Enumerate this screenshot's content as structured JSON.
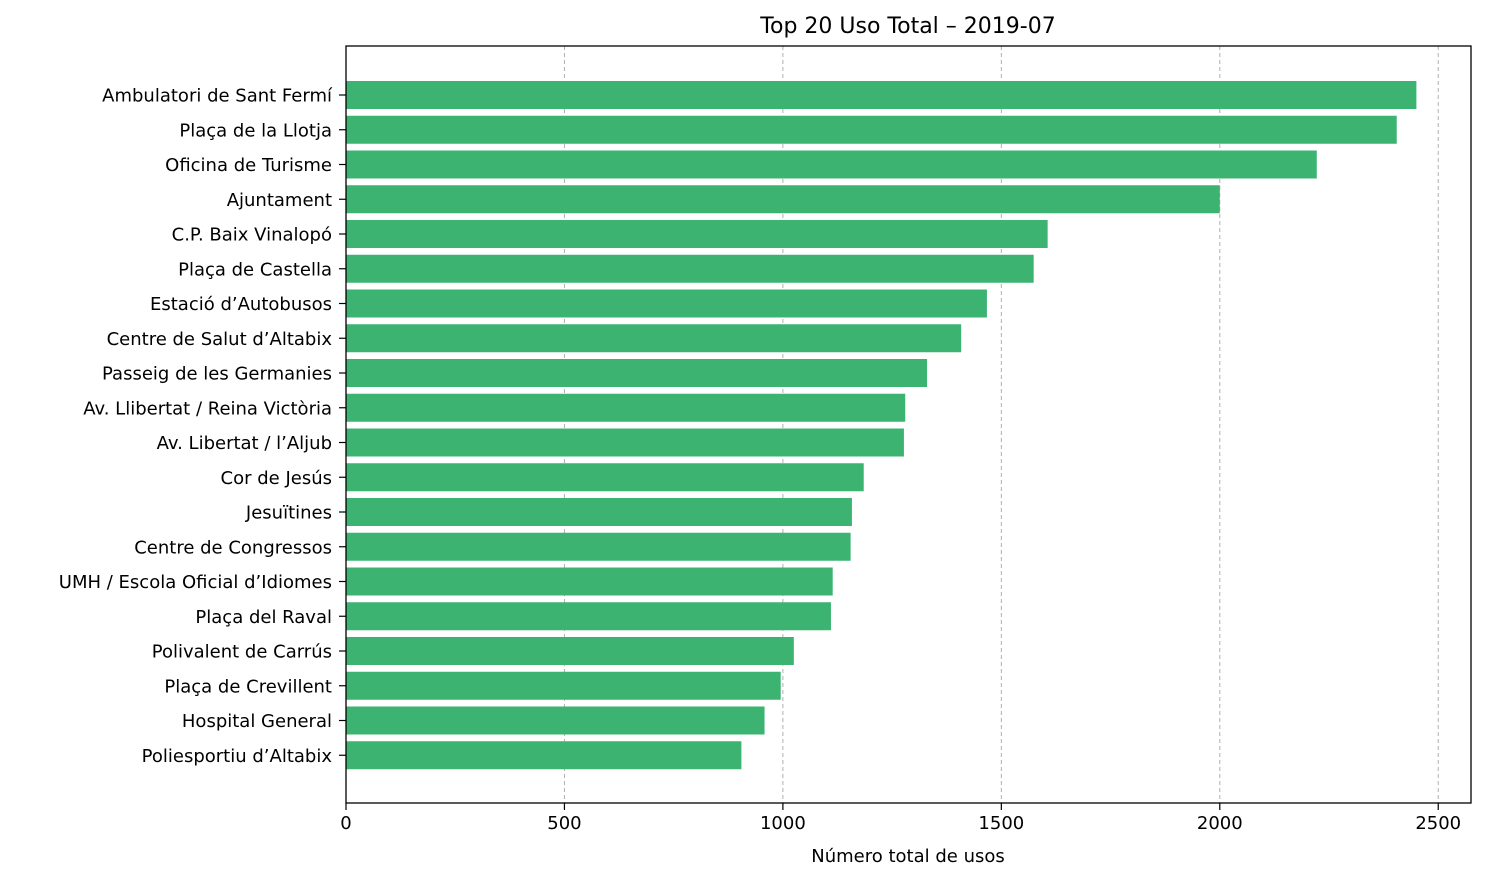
{
  "chart_data": {
    "type": "bar",
    "orientation": "horizontal",
    "title": "Top 20 Uso Total – 2019-07",
    "xlabel": "Número total de usos",
    "ylabel": "",
    "xlim": [
      0,
      2575
    ],
    "xticks": [
      0,
      500,
      1000,
      1500,
      2000,
      2500
    ],
    "grid": "x-dashed",
    "bar_color": "#3cb371",
    "categories": [
      "Ambulatori de Sant Fermí",
      "Plaça de la Llotja",
      "Oficina de Turisme",
      "Ajuntament",
      "C.P. Baix Vinalopó",
      "Plaça de Castella",
      "Estació d’Autobusos",
      "Centre de Salut d’Altabix",
      "Passeig de les Germanies",
      "Av. Llibertat / Reina Victòria",
      "Av. Libertat / l’Aljub",
      "Cor de Jesús",
      "Jesuïtines",
      "Centre de Congressos",
      "UMH / Escola Oficial d’Idiomes",
      "Plaça del Raval",
      "Polivalent de Carrús",
      "Plaça de Crevillent",
      "Hospital General",
      "Poliesportiu d’Altabix"
    ],
    "values": [
      2450,
      2405,
      2222,
      2000,
      1606,
      1574,
      1467,
      1408,
      1330,
      1280,
      1277,
      1185,
      1158,
      1155,
      1114,
      1110,
      1025,
      995,
      958,
      905
    ]
  }
}
